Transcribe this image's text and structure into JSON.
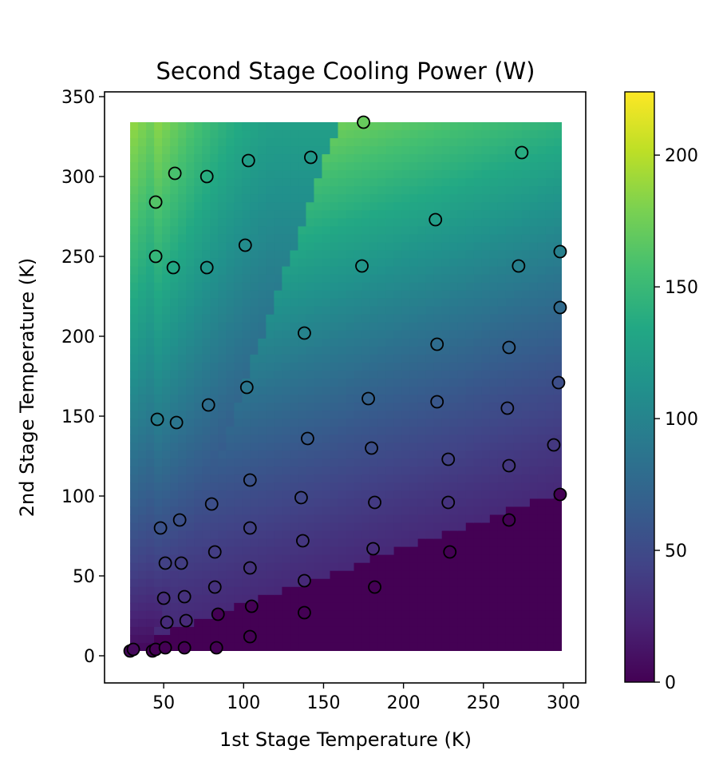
{
  "chart_data": {
    "type": "scatter",
    "title": "Second Stage Cooling Power (W)",
    "xlabel": "1st Stage Temperature (K)",
    "ylabel": "2nd Stage Temperature (K)",
    "xlim": [
      13,
      314
    ],
    "ylim": [
      -17,
      353
    ],
    "xticks": [
      50,
      100,
      150,
      200,
      250,
      300
    ],
    "yticks": [
      0,
      50,
      100,
      150,
      200,
      250,
      300,
      350
    ],
    "colorbar": {
      "min": 0,
      "max": 224,
      "ticks": [
        0,
        50,
        100,
        150,
        200
      ],
      "colormap": "viridis"
    },
    "surface_extent": {
      "x": [
        29,
        299
      ],
      "y": [
        3,
        334
      ]
    },
    "grid": false,
    "points": [
      {
        "x": 175,
        "y": 334
      },
      {
        "x": 274,
        "y": 315
      },
      {
        "x": 142,
        "y": 312
      },
      {
        "x": 103,
        "y": 310
      },
      {
        "x": 57,
        "y": 302
      },
      {
        "x": 77,
        "y": 300
      },
      {
        "x": 45,
        "y": 284
      },
      {
        "x": 220,
        "y": 273
      },
      {
        "x": 101,
        "y": 257
      },
      {
        "x": 45,
        "y": 250
      },
      {
        "x": 56,
        "y": 243
      },
      {
        "x": 77,
        "y": 243
      },
      {
        "x": 174,
        "y": 244
      },
      {
        "x": 272,
        "y": 244
      },
      {
        "x": 298,
        "y": 253
      },
      {
        "x": 298,
        "y": 218
      },
      {
        "x": 138,
        "y": 202
      },
      {
        "x": 221,
        "y": 195
      },
      {
        "x": 266,
        "y": 193
      },
      {
        "x": 297,
        "y": 171
      },
      {
        "x": 102,
        "y": 168
      },
      {
        "x": 178,
        "y": 161
      },
      {
        "x": 221,
        "y": 159
      },
      {
        "x": 78,
        "y": 157
      },
      {
        "x": 265,
        "y": 155
      },
      {
        "x": 46,
        "y": 148
      },
      {
        "x": 58,
        "y": 146
      },
      {
        "x": 140,
        "y": 136
      },
      {
        "x": 180,
        "y": 130
      },
      {
        "x": 294,
        "y": 132
      },
      {
        "x": 228,
        "y": 123
      },
      {
        "x": 266,
        "y": 119
      },
      {
        "x": 104,
        "y": 110
      },
      {
        "x": 298,
        "y": 101
      },
      {
        "x": 136,
        "y": 99
      },
      {
        "x": 182,
        "y": 96
      },
      {
        "x": 228,
        "y": 96
      },
      {
        "x": 80,
        "y": 95
      },
      {
        "x": 60,
        "y": 85
      },
      {
        "x": 266,
        "y": 85
      },
      {
        "x": 48,
        "y": 80
      },
      {
        "x": 104,
        "y": 80
      },
      {
        "x": 137,
        "y": 72
      },
      {
        "x": 181,
        "y": 67
      },
      {
        "x": 229,
        "y": 65
      },
      {
        "x": 82,
        "y": 65
      },
      {
        "x": 51,
        "y": 58
      },
      {
        "x": 61,
        "y": 58
      },
      {
        "x": 104,
        "y": 55
      },
      {
        "x": 138,
        "y": 47
      },
      {
        "x": 82,
        "y": 43
      },
      {
        "x": 182,
        "y": 43
      },
      {
        "x": 63,
        "y": 37
      },
      {
        "x": 50,
        "y": 36
      },
      {
        "x": 105,
        "y": 31
      },
      {
        "x": 138,
        "y": 27
      },
      {
        "x": 84,
        "y": 26
      },
      {
        "x": 64,
        "y": 22
      },
      {
        "x": 52,
        "y": 21
      },
      {
        "x": 104,
        "y": 12
      },
      {
        "x": 29,
        "y": 3
      },
      {
        "x": 31,
        "y": 4
      },
      {
        "x": 43,
        "y": 3
      },
      {
        "x": 45,
        "y": 4
      },
      {
        "x": 51,
        "y": 5
      },
      {
        "x": 63,
        "y": 5
      },
      {
        "x": 83,
        "y": 5
      }
    ]
  }
}
